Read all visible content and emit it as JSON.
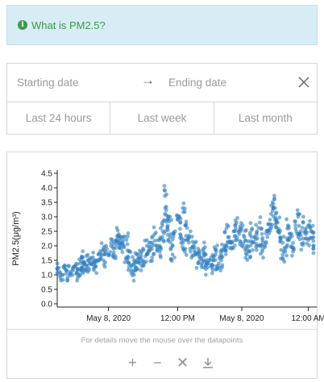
{
  "info": {
    "icon": "info-circle-icon",
    "text": "What is PM2.5?",
    "color": "#3a9a48",
    "background": "#d8ecf5"
  },
  "date_range": {
    "start_placeholder": "Starting date",
    "end_placeholder": "Ending date",
    "arrow_icon": "arrow-right-icon",
    "clear_icon": "close-icon"
  },
  "quick_ranges": [
    "Last 24 hours",
    "Last week",
    "Last month"
  ],
  "chart": {
    "hint": "For details move the mouse over the datapoints",
    "tools": [
      "zoom-in-icon",
      "zoom-out-icon",
      "reset-icon",
      "download-icon"
    ],
    "point_color": "#2f7fbf"
  },
  "chart_data": {
    "type": "scatter",
    "ylabel": "PM2.5(μg/m³)",
    "ylim": [
      0.0,
      4.5
    ],
    "yticks": [
      "0.0",
      "0.5",
      "1.0",
      "1.5",
      "2.0",
      "2.5",
      "3.0",
      "3.5",
      "4.0",
      "4.5"
    ],
    "xticks": [
      "May 8, 2020",
      "12:00 PM",
      "May 8, 2020",
      "12:00 AM"
    ],
    "xlim": [
      0,
      100
    ],
    "xtick_positions": [
      20,
      47,
      72,
      98
    ],
    "series": [
      {
        "x": [
          0,
          1,
          2,
          3,
          4,
          5,
          6,
          7,
          8,
          9,
          10,
          11,
          12,
          13,
          14,
          15,
          16,
          17,
          18,
          19,
          20,
          21,
          22,
          23,
          24,
          25,
          26,
          27,
          28,
          29,
          30,
          31,
          32,
          33,
          34,
          35,
          36,
          37,
          38,
          39,
          40,
          41,
          42,
          43,
          44,
          45,
          46,
          47,
          48,
          49,
          50,
          51,
          52,
          53,
          54,
          55,
          56,
          57,
          58,
          59,
          60,
          61,
          62,
          63,
          64,
          65,
          66,
          67,
          68,
          69,
          70,
          71,
          72,
          73,
          74,
          75,
          76,
          77,
          78,
          79,
          80,
          81,
          82,
          83,
          84,
          85,
          86,
          87,
          88,
          89,
          90,
          91,
          92,
          93,
          94,
          95,
          96,
          97,
          98,
          99,
          100
        ],
        "y": [
          1.2,
          1.1,
          1.0,
          1.3,
          0.9,
          1.1,
          1.2,
          1.3,
          1.2,
          1.4,
          1.3,
          1.2,
          1.5,
          1.4,
          1.6,
          1.5,
          1.7,
          1.6,
          1.9,
          1.8,
          1.7,
          2.0,
          1.9,
          2.2,
          2.1,
          2.3,
          2.0,
          1.6,
          1.4,
          1.3,
          1.5,
          1.2,
          1.6,
          1.8,
          1.4,
          1.7,
          1.9,
          2.1,
          2.4,
          2.0,
          2.2,
          2.7,
          3.1,
          2.6,
          2.3,
          2.0,
          2.5,
          2.9,
          2.4,
          2.1,
          1.9,
          2.2,
          1.8,
          2.0,
          1.7,
          1.9,
          1.6,
          1.5,
          1.7,
          1.4,
          1.6,
          1.5,
          1.3,
          1.4,
          1.7,
          1.9,
          2.0,
          2.3,
          2.1,
          2.5,
          2.2,
          2.4,
          2.6,
          2.3,
          2.0,
          1.8,
          2.1,
          2.3,
          2.5,
          2.8,
          2.2,
          2.0,
          2.3,
          2.6,
          3.2,
          2.9,
          2.5,
          2.3,
          2.1,
          1.9,
          2.2,
          2.4,
          2.1,
          2.6,
          2.3,
          2.5,
          2.8,
          2.4,
          2.2,
          2.5,
          2.3
        ],
        "extra": [
          [
            8,
            0.9
          ],
          [
            9,
            1.0
          ],
          [
            10,
            1.6
          ],
          [
            12,
            1.1
          ],
          [
            15,
            1.3
          ],
          [
            18,
            1.5
          ],
          [
            22,
            1.6
          ],
          [
            24,
            2.4
          ],
          [
            25,
            1.9
          ],
          [
            27,
            2.2
          ],
          [
            28,
            1.8
          ],
          [
            30,
            1.0
          ],
          [
            31,
            1.7
          ],
          [
            33,
            1.3
          ],
          [
            35,
            2.0
          ],
          [
            37,
            1.6
          ],
          [
            40,
            1.8
          ],
          [
            41,
            2.3
          ],
          [
            42,
            3.9
          ],
          [
            43,
            2.9
          ],
          [
            44,
            3.0
          ],
          [
            45,
            1.7
          ],
          [
            48,
            2.8
          ],
          [
            49,
            3.3
          ],
          [
            50,
            2.7
          ],
          [
            52,
            2.5
          ],
          [
            55,
            1.4
          ],
          [
            57,
            1.9
          ],
          [
            58,
            1.2
          ],
          [
            60,
            1.3
          ],
          [
            62,
            1.8
          ],
          [
            64,
            1.5
          ],
          [
            66,
            2.6
          ],
          [
            68,
            1.9
          ],
          [
            70,
            2.8
          ],
          [
            72,
            2.0
          ],
          [
            74,
            1.7
          ],
          [
            76,
            2.6
          ],
          [
            78,
            2.0
          ],
          [
            80,
            1.8
          ],
          [
            83,
            2.9
          ],
          [
            84,
            3.5
          ],
          [
            85,
            3.3
          ],
          [
            86,
            2.8
          ],
          [
            88,
            1.7
          ],
          [
            90,
            2.7
          ],
          [
            92,
            1.9
          ],
          [
            94,
            3.0
          ],
          [
            96,
            2.1
          ],
          [
            98,
            2.7
          ],
          [
            100,
            2.0
          ]
        ]
      }
    ],
    "grid": false
  }
}
